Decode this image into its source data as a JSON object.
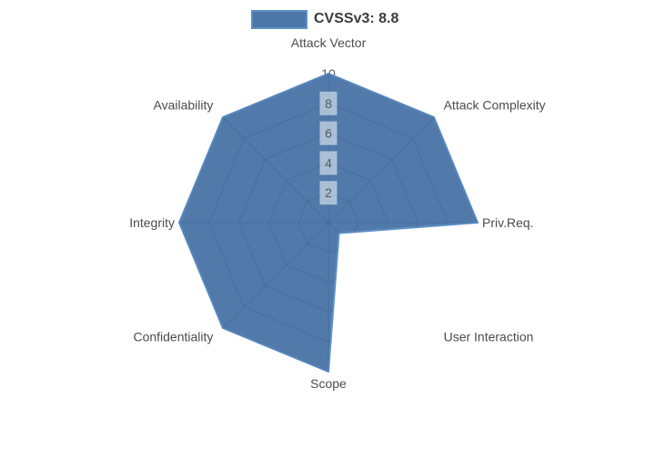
{
  "legend": {
    "label": "CVSSv3: 8.8"
  },
  "colors": {
    "fill": "#4b76a8",
    "outline": "#5e90c6",
    "grid": "#3a5f88",
    "tick_text": "#545b64",
    "tick_backdrop": "#ffffff",
    "axis_text": "#4c4c4c",
    "legend_text": "#3b3b3b"
  },
  "chart_data": {
    "type": "radar",
    "title": "CVSSv3: 8.8",
    "categories": [
      "Attack Vector",
      "Attack Complexity",
      "Priv.Req.",
      "User Interaction",
      "Scope",
      "Confidentiality",
      "Integrity",
      "Availability"
    ],
    "series": [
      {
        "name": "CVSSv3: 8.8",
        "values": [
          10,
          10,
          10,
          1,
          10,
          10,
          10,
          10
        ]
      }
    ],
    "ticks": [
      2,
      4,
      6,
      8,
      10
    ],
    "range": [
      0,
      10
    ],
    "grid": true,
    "legend_position": "top"
  }
}
